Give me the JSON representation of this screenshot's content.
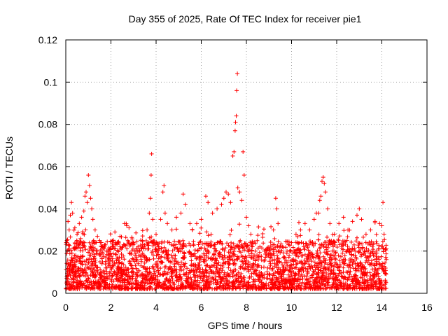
{
  "chart_data": {
    "type": "scatter",
    "title": "Day 355 of 2025, Rate Of TEC Index for receiver pie1",
    "xlabel": "GPS time / hours",
    "ylabel": "ROTI / TECUs",
    "xlim": [
      0,
      16
    ],
    "ylim": [
      0,
      0.12
    ],
    "xticks": [
      0,
      2,
      4,
      6,
      8,
      10,
      12,
      14,
      16
    ],
    "xtick_labels": [
      "0",
      "2",
      "4",
      "6",
      "8",
      "10",
      "12",
      "14",
      "16"
    ],
    "yticks": [
      0,
      0.02,
      0.04,
      0.06,
      0.08,
      0.1,
      0.12
    ],
    "ytick_labels": [
      "0",
      "0.02",
      "0.04",
      "0.06",
      "0.08",
      "0.1",
      "0.12"
    ],
    "grid": true,
    "marker": "+",
    "marker_color": "#ff0000",
    "series": [
      {
        "name": "ROTI",
        "points": [
          [
            0.05,
            0.025
          ],
          [
            0.1,
            0.034
          ],
          [
            0.15,
            0.03
          ],
          [
            0.2,
            0.037
          ],
          [
            0.25,
            0.043
          ],
          [
            0.3,
            0.038
          ],
          [
            0.4,
            0.031
          ],
          [
            0.5,
            0.028
          ],
          [
            0.6,
            0.033
          ],
          [
            0.7,
            0.036
          ],
          [
            0.8,
            0.039
          ],
          [
            0.85,
            0.046
          ],
          [
            0.9,
            0.048
          ],
          [
            0.95,
            0.043
          ],
          [
            1.0,
            0.056
          ],
          [
            1.05,
            0.051
          ],
          [
            1.1,
            0.045
          ],
          [
            1.15,
            0.04
          ],
          [
            1.2,
            0.035
          ],
          [
            1.3,
            0.03
          ],
          [
            1.4,
            0.027
          ],
          [
            1.5,
            0.025
          ],
          [
            1.6,
            0.022
          ],
          [
            1.8,
            0.02
          ],
          [
            2.0,
            0.021
          ],
          [
            2.2,
            0.024
          ],
          [
            2.4,
            0.027
          ],
          [
            2.6,
            0.033
          ],
          [
            2.7,
            0.032
          ],
          [
            2.8,
            0.031
          ],
          [
            3.0,
            0.024
          ],
          [
            3.2,
            0.022
          ],
          [
            3.4,
            0.025
          ],
          [
            3.6,
            0.03
          ],
          [
            3.7,
            0.038
          ],
          [
            3.75,
            0.045
          ],
          [
            3.78,
            0.056
          ],
          [
            3.8,
            0.066
          ],
          [
            3.85,
            0.035
          ],
          [
            4.0,
            0.028
          ],
          [
            4.2,
            0.035
          ],
          [
            4.3,
            0.048
          ],
          [
            4.35,
            0.051
          ],
          [
            4.4,
            0.038
          ],
          [
            4.5,
            0.033
          ],
          [
            4.7,
            0.03
          ],
          [
            4.9,
            0.036
          ],
          [
            5.1,
            0.038
          ],
          [
            5.2,
            0.047
          ],
          [
            5.3,
            0.042
          ],
          [
            5.5,
            0.033
          ],
          [
            5.6,
            0.03
          ],
          [
            5.8,
            0.033
          ],
          [
            6.0,
            0.035
          ],
          [
            6.2,
            0.046
          ],
          [
            6.3,
            0.043
          ],
          [
            6.5,
            0.038
          ],
          [
            6.7,
            0.04
          ],
          [
            6.9,
            0.042
          ],
          [
            7.0,
            0.045
          ],
          [
            7.1,
            0.048
          ],
          [
            7.2,
            0.047
          ],
          [
            7.3,
            0.043
          ],
          [
            7.4,
            0.065
          ],
          [
            7.45,
            0.067
          ],
          [
            7.5,
            0.077
          ],
          [
            7.52,
            0.081
          ],
          [
            7.55,
            0.084
          ],
          [
            7.57,
            0.096
          ],
          [
            7.6,
            0.104
          ],
          [
            7.62,
            0.05
          ],
          [
            7.7,
            0.048
          ],
          [
            7.8,
            0.044
          ],
          [
            7.85,
            0.067
          ],
          [
            7.9,
            0.056
          ],
          [
            8.0,
            0.036
          ],
          [
            8.1,
            0.032
          ],
          [
            8.2,
            0.028
          ],
          [
            8.4,
            0.02
          ],
          [
            8.6,
            0.022
          ],
          [
            8.8,
            0.02
          ],
          [
            9.0,
            0.019
          ],
          [
            9.2,
            0.03
          ],
          [
            9.3,
            0.045
          ],
          [
            9.35,
            0.04
          ],
          [
            9.4,
            0.033
          ],
          [
            9.6,
            0.022
          ],
          [
            9.8,
            0.02
          ],
          [
            10.0,
            0.024
          ],
          [
            10.2,
            0.028
          ],
          [
            10.4,
            0.03
          ],
          [
            10.6,
            0.033
          ],
          [
            10.8,
            0.03
          ],
          [
            11.0,
            0.035
          ],
          [
            11.1,
            0.038
          ],
          [
            11.2,
            0.038
          ],
          [
            11.25,
            0.044
          ],
          [
            11.3,
            0.046
          ],
          [
            11.35,
            0.053
          ],
          [
            11.4,
            0.055
          ],
          [
            11.45,
            0.052
          ],
          [
            11.5,
            0.048
          ],
          [
            11.6,
            0.04
          ],
          [
            11.7,
            0.033
          ],
          [
            11.9,
            0.028
          ],
          [
            12.1,
            0.033
          ],
          [
            12.3,
            0.036
          ],
          [
            12.5,
            0.03
          ],
          [
            12.7,
            0.034
          ],
          [
            12.9,
            0.037
          ],
          [
            13.0,
            0.04
          ],
          [
            13.1,
            0.035
          ],
          [
            13.3,
            0.028
          ],
          [
            13.5,
            0.03
          ],
          [
            13.7,
            0.034
          ],
          [
            13.9,
            0.033
          ],
          [
            14.0,
            0.032
          ],
          [
            14.05,
            0.043
          ],
          [
            14.1,
            0.028
          ],
          [
            14.2,
            0.016
          ]
        ],
        "dense_band": {
          "x_range": [
            0.0,
            14.2
          ],
          "y_typical_range": [
            0.002,
            0.025
          ],
          "approx_point_count": 3000
        }
      }
    ]
  }
}
